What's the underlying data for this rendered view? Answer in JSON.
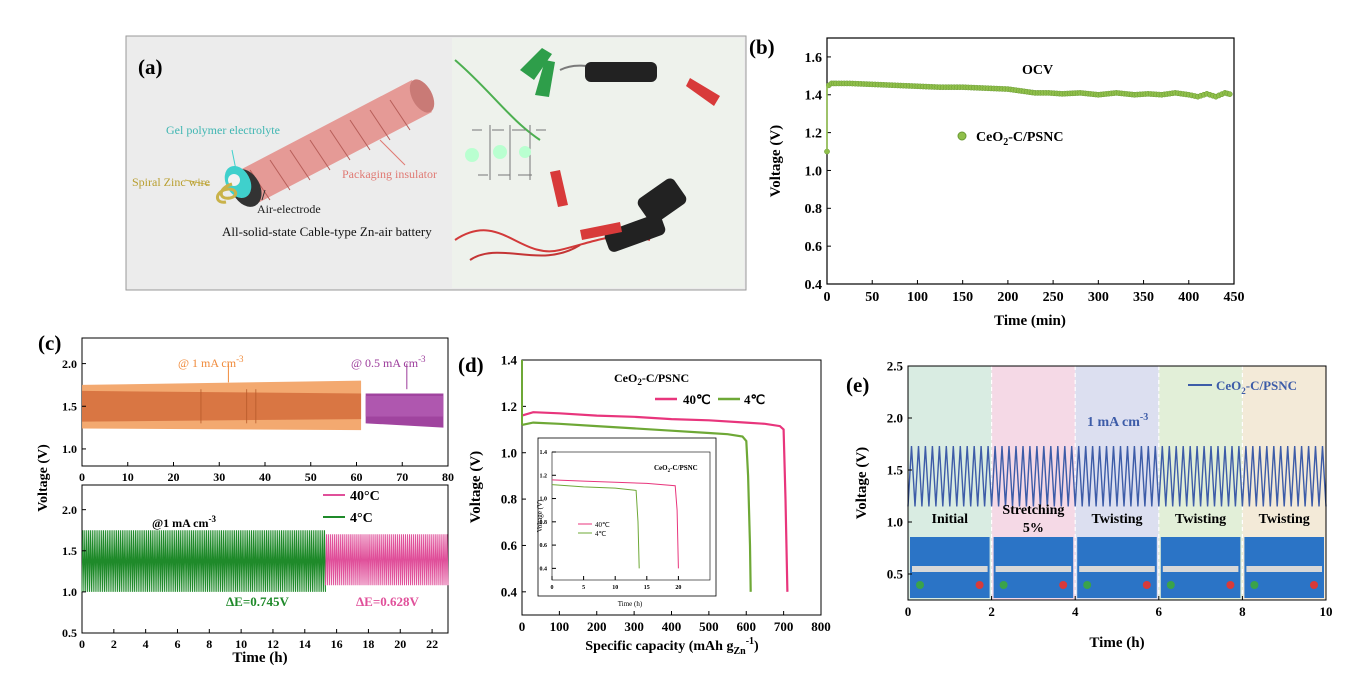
{
  "figure": {
    "panel_labels": [
      "(a)",
      "(b)",
      "(c)",
      "(d)",
      "(e)"
    ]
  },
  "panel_a": {
    "labels": {
      "gel": "Gel polymer electrolyte",
      "zinc": "Spiral Zinc wire",
      "insulator": "Packaging insulator",
      "air": "Air-electrode",
      "caption": "All-solid-state Cable-type Zn-air battery"
    },
    "colors": {
      "tube": "#e59a96",
      "gel": "#3fd0cc",
      "zinc": "#c9b24a",
      "insulator_text": "#e07a74",
      "photo_bg": "#eef2ec"
    }
  },
  "chart_data": [
    {
      "id": "b",
      "type": "scatter",
      "xlabel": "Time (min)",
      "ylabel": "Voltage (V)",
      "xlim": [
        0,
        450
      ],
      "ylim": [
        0.4,
        1.7
      ],
      "xticks": [
        "0",
        "50",
        "100",
        "150",
        "200",
        "250",
        "300",
        "350",
        "400",
        "450"
      ],
      "yticks": [
        "0.4",
        "0.6",
        "0.8",
        "1.0",
        "1.2",
        "1.4",
        "1.6"
      ],
      "annotation": "OCV",
      "series": [
        {
          "name": "CeO2-C/PSNC",
          "color": "#8fbf4a",
          "x": [
            0,
            2,
            5,
            10,
            25,
            50,
            75,
            100,
            125,
            150,
            175,
            200,
            215,
            230,
            245,
            260,
            280,
            300,
            320,
            340,
            355,
            370,
            385,
            400,
            410,
            420,
            430,
            440,
            448
          ],
          "y": [
            1.1,
            1.45,
            1.46,
            1.46,
            1.46,
            1.455,
            1.45,
            1.445,
            1.44,
            1.44,
            1.435,
            1.43,
            1.42,
            1.41,
            1.41,
            1.405,
            1.41,
            1.4,
            1.41,
            1.4,
            1.405,
            1.4,
            1.41,
            1.4,
            1.39,
            1.405,
            1.39,
            1.41,
            1.4
          ]
        }
      ]
    },
    {
      "id": "c_top",
      "type": "area",
      "xlim": [
        0,
        80
      ],
      "ylim": [
        0.8,
        2.3
      ],
      "xticks": [
        "0",
        "10",
        "20",
        "30",
        "40",
        "50",
        "60",
        "70",
        "80"
      ],
      "yticks": [
        "1.0",
        "1.5",
        "2.0"
      ],
      "annotations": [
        "@ 1 mA cm-3",
        "@ 0.5 mA cm-3"
      ],
      "series": [
        {
          "name": "@ 1 mA cm-3",
          "color": "#f2a468",
          "x": [
            0,
            61
          ],
          "charge": [
            1.75,
            1.8
          ],
          "discharge": [
            1.24,
            1.22
          ]
        },
        {
          "name": "@ 0.5 mA cm-3",
          "color": "#9b3a9a",
          "x": [
            62,
            79
          ],
          "charge": [
            1.65,
            1.65
          ],
          "discharge": [
            1.3,
            1.25
          ]
        }
      ]
    },
    {
      "id": "c_bottom",
      "type": "line",
      "xlabel": "Time (h)",
      "xlim": [
        0,
        23
      ],
      "ylim": [
        0.5,
        2.3
      ],
      "xticks": [
        "0",
        "2",
        "4",
        "6",
        "8",
        "10",
        "12",
        "14",
        "16",
        "18",
        "20",
        "22"
      ],
      "yticks": [
        "0.5",
        "1.0",
        "1.5",
        "2.0"
      ],
      "shared_ylabel": "Voltage (V)",
      "annotation": "@1 mA cm-3",
      "series": [
        {
          "name": "4°C",
          "color": "#1f8a2a",
          "x_range": [
            0,
            15.3
          ],
          "charge": 1.75,
          "discharge": 1.0,
          "label": "ΔE=0.745V"
        },
        {
          "name": "40°C",
          "color": "#e0509a",
          "x_range": [
            15.3,
            23
          ],
          "charge": 1.7,
          "discharge": 1.08,
          "label": "ΔE=0.628V"
        }
      ]
    },
    {
      "id": "d",
      "type": "line",
      "xlabel": "Specific capacity (mAh gZn-1)",
      "ylabel": "Voltage (V)",
      "title": "CeO2-C/PSNC",
      "xlim": [
        0,
        800
      ],
      "ylim": [
        0.3,
        1.4
      ],
      "xticks": [
        "0",
        "100",
        "200",
        "300",
        "400",
        "500",
        "600",
        "700",
        "800"
      ],
      "yticks": [
        "0.4",
        "0.6",
        "0.8",
        "1.0",
        "1.2",
        "1.4"
      ],
      "series": [
        {
          "name": "40℃",
          "color": "#e8357c",
          "x": [
            0,
            30,
            100,
            200,
            300,
            400,
            500,
            600,
            650,
            690,
            700,
            705,
            710
          ],
          "y": [
            1.16,
            1.175,
            1.17,
            1.16,
            1.155,
            1.145,
            1.14,
            1.13,
            1.125,
            1.115,
            1.1,
            0.8,
            0.4
          ]
        },
        {
          "name": "4℃",
          "color": "#6ea836",
          "x": [
            0,
            30,
            100,
            200,
            300,
            400,
            500,
            550,
            590,
            600,
            605,
            610,
            612
          ],
          "y": [
            1.12,
            1.13,
            1.125,
            1.115,
            1.105,
            1.095,
            1.085,
            1.08,
            1.07,
            1.05,
            0.9,
            0.6,
            0.4
          ]
        }
      ],
      "inset": {
        "title": "CeO2-C/PSNC",
        "xlabel": "Time (h)",
        "ylabel": "Voltage (V)",
        "xlim": [
          0,
          25
        ],
        "ylim": [
          0.3,
          1.4
        ],
        "xticks": [
          "0",
          "5",
          "10",
          "15",
          "20"
        ],
        "yticks": [
          "0.4",
          "0.6",
          "0.8",
          "1.0",
          "1.2",
          "1.4"
        ],
        "series": [
          {
            "name": "40℃",
            "color": "#e8357c",
            "x": [
              0,
              5,
              10,
              15,
              19.5,
              19.8,
              20
            ],
            "y": [
              1.16,
              1.15,
              1.14,
              1.13,
              1.11,
              0.9,
              0.4
            ]
          },
          {
            "name": "4℃",
            "color": "#6ea836",
            "x": [
              0,
              5,
              10,
              13.3,
              13.6,
              13.8
            ],
            "y": [
              1.12,
              1.1,
              1.09,
              1.07,
              0.8,
              0.4
            ]
          }
        ]
      }
    },
    {
      "id": "e",
      "type": "line",
      "xlabel": "Time (h)",
      "ylabel": "Voltage (V)",
      "xlim": [
        0,
        10
      ],
      "ylim": [
        0.25,
        2.5
      ],
      "xticks": [
        "0",
        "2",
        "4",
        "6",
        "8",
        "10"
      ],
      "yticks": [
        "0.5",
        "1.0",
        "1.5",
        "2.0",
        "2.5"
      ],
      "annotation": "1 mA cm-3",
      "series": [
        {
          "name": "CeO2-C/PSNC",
          "color": "#3d5ca8",
          "x_range": [
            0,
            10
          ],
          "charge": 1.73,
          "discharge": 1.15,
          "cycles": 60
        }
      ],
      "regions": [
        {
          "label": "Initial",
          "x": [
            0,
            2
          ],
          "color": "#d9ece2"
        },
        {
          "label": "Stretching 5%",
          "x": [
            2,
            4
          ],
          "color": "#f5d9e6"
        },
        {
          "label": "Twisting",
          "x": [
            4,
            6
          ],
          "color": "#dcdff0"
        },
        {
          "label": "Twisting",
          "x": [
            6,
            8
          ],
          "color": "#e2efd8"
        },
        {
          "label": "Twisting",
          "x": [
            8,
            10
          ],
          "color": "#f3ead8"
        }
      ]
    }
  ]
}
